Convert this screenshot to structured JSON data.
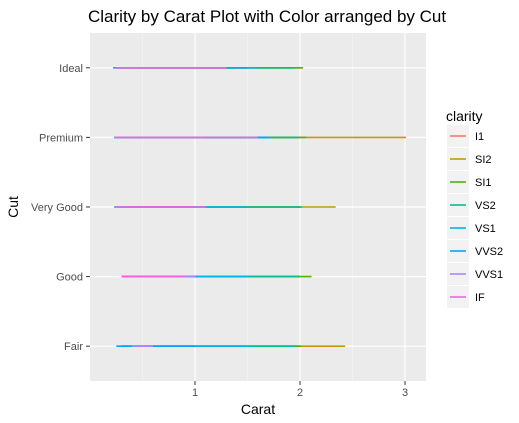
{
  "chart_data": {
    "type": "line",
    "title": "Clarity by Carat Plot with Color arranged by Cut",
    "xlabel": "Carat",
    "ylabel": "Cut",
    "xlim": [
      0.0,
      3.2
    ],
    "x_ticks": [
      1,
      2,
      3
    ],
    "categories": [
      "Fair",
      "Good",
      "Very Good",
      "Premium",
      "Ideal"
    ],
    "grid": true,
    "legend": {
      "title": "clarity",
      "position": "right"
    },
    "series": [
      {
        "name": "I1",
        "color": "#F8766D",
        "ranges": {
          "Ideal": [
            1.0,
            2.02
          ],
          "Premium": [
            1.1,
            2.0
          ],
          "Very Good": [
            1.2,
            2.0
          ],
          "Good": [
            1.0,
            2.0
          ],
          "Fair": [
            1.0,
            2.0
          ]
        }
      },
      {
        "name": "SI2",
        "color": "#C49A00",
        "ranges": {
          "Ideal": [
            0.5,
            1.9
          ],
          "Premium": [
            0.3,
            3.01
          ],
          "Very Good": [
            0.4,
            2.34
          ],
          "Good": [
            0.4,
            2.0
          ],
          "Fair": [
            0.5,
            2.43
          ]
        }
      },
      {
        "name": "SI1",
        "color": "#53B400",
        "ranges": {
          "Ideal": [
            0.3,
            2.03
          ],
          "Premium": [
            0.3,
            2.06
          ],
          "Very Good": [
            0.3,
            2.0
          ],
          "Good": [
            0.3,
            2.11
          ],
          "Fair": [
            0.3,
            2.01
          ]
        }
      },
      {
        "name": "VS2",
        "color": "#00C094",
        "ranges": {
          "Ideal": [
            0.25,
            1.95
          ],
          "Premium": [
            0.25,
            2.0
          ],
          "Very Good": [
            0.3,
            2.02
          ],
          "Good": [
            0.3,
            2.0
          ],
          "Fair": [
            0.3,
            1.95
          ]
        }
      },
      {
        "name": "VS1",
        "color": "#00B6EB",
        "ranges": {
          "Ideal": [
            0.25,
            1.6
          ],
          "Premium": [
            0.23,
            1.7
          ],
          "Very Good": [
            0.25,
            1.5
          ],
          "Good": [
            0.3,
            1.5
          ],
          "Fair": [
            0.3,
            1.5
          ]
        }
      },
      {
        "name": "VVS2",
        "color": "#06A4FF",
        "ranges": {
          "Ideal": [
            0.22,
            1.5
          ],
          "Premium": [
            0.23,
            1.7
          ],
          "Very Good": [
            0.23,
            1.1
          ],
          "Good": [
            0.3,
            1.0
          ],
          "Fair": [
            0.25,
            1.0
          ]
        }
      },
      {
        "name": "VVS1",
        "color": "#A58AFF",
        "ranges": {
          "Ideal": [
            0.25,
            1.2
          ],
          "Premium": [
            0.23,
            1.1
          ],
          "Very Good": [
            0.25,
            1.1
          ],
          "Good": [
            0.3,
            1.0
          ],
          "Fair": [
            0.4,
            0.6
          ]
        }
      },
      {
        "name": "IF",
        "color": "#FB61D7",
        "ranges": {
          "Ideal": [
            0.25,
            1.3
          ],
          "Premium": [
            0.23,
            1.6
          ],
          "Very Good": [
            0.25,
            1.1
          ],
          "Good": [
            0.3,
            0.9
          ]
        }
      }
    ]
  }
}
